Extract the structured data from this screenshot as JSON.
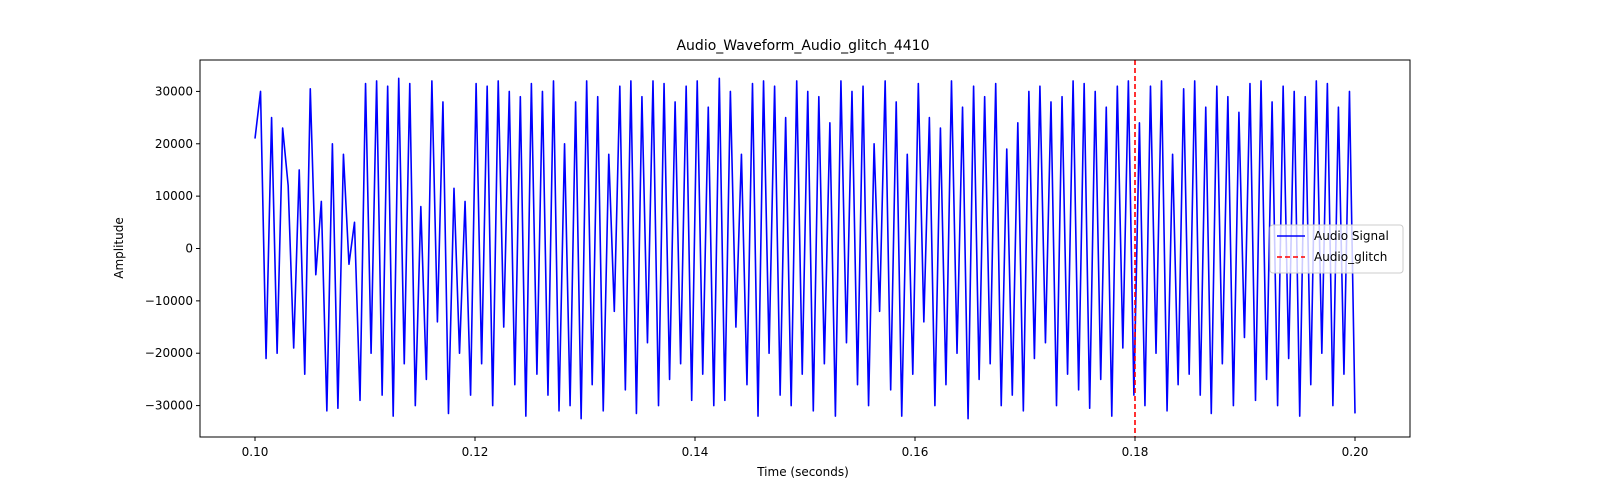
{
  "chart_data": {
    "type": "line",
    "title": "Audio_Waveform_Audio_glitch_4410",
    "xlabel": "Time (seconds)",
    "ylabel": "Amplitude",
    "xlim": [
      0.095,
      0.205
    ],
    "ylim": [
      -36000,
      36000
    ],
    "xticks": [
      0.1,
      0.12,
      0.14,
      0.16,
      0.18,
      0.2
    ],
    "xtick_labels": [
      "0.10",
      "0.12",
      "0.14",
      "0.16",
      "0.18",
      "0.20"
    ],
    "yticks": [
      -30000,
      -20000,
      -10000,
      0,
      10000,
      20000,
      30000
    ],
    "ytick_labels": [
      "−30000",
      "−20000",
      "−10000",
      "0",
      "10000",
      "20000",
      "30000"
    ],
    "grid": false,
    "legend": {
      "placement": "center-right",
      "entries": [
        {
          "label": "Audio Signal",
          "color": "#0000ff",
          "style": "solid"
        },
        {
          "label": "Audio_glitch",
          "color": "#ff0000",
          "style": "dashed"
        }
      ]
    },
    "series": [
      {
        "name": "Audio Signal",
        "color": "#0000ff",
        "x_start": 0.1,
        "x_end": 0.2,
        "y": [
          21000,
          30000,
          -21000,
          25000,
          -20000,
          23000,
          12000,
          -19000,
          15000,
          -24000,
          30500,
          -5000,
          9000,
          -31000,
          20000,
          -30500,
          18000,
          -3000,
          5000,
          -29000,
          31500,
          -20000,
          32000,
          -28000,
          31000,
          -32000,
          32500,
          -22000,
          31500,
          -30000,
          8000,
          -25000,
          32000,
          -14000,
          28000,
          -31500,
          11500,
          -20000,
          9000,
          -28000,
          31500,
          -22000,
          31000,
          -30000,
          32000,
          -15000,
          30000,
          -26000,
          29000,
          -32000,
          31500,
          -24000,
          30000,
          -28000,
          32000,
          -31000,
          20000,
          -30000,
          28000,
          -32500,
          32000,
          -26000,
          29000,
          -31000,
          18000,
          -12000,
          31000,
          -27000,
          32000,
          -31500,
          29000,
          -18000,
          32000,
          -30000,
          31500,
          -25000,
          28000,
          -22000,
          31000,
          -29000,
          32000,
          -24000,
          27000,
          -30000,
          32500,
          -29000,
          30000,
          -15000,
          18000,
          -26000,
          31500,
          -32000,
          32000,
          -20000,
          31000,
          -28000,
          25000,
          -30000,
          32000,
          -24000,
          30000,
          -31000,
          29000,
          -22000,
          24000,
          -32000,
          32000,
          -18000,
          30000,
          -26000,
          31000,
          -30000,
          20000,
          -12000,
          32000,
          -27000,
          28000,
          -32000,
          18000,
          -24000,
          31500,
          -14000,
          25000,
          -30000,
          23000,
          -26000,
          32000,
          -20000,
          27000,
          -32500,
          31000,
          -25000,
          29000,
          -22000,
          31500,
          -30000,
          19000,
          -28000,
          24000,
          -31000,
          30000,
          -21000,
          31000,
          -18000,
          28000,
          -30000,
          29000,
          -24000,
          32000,
          -27000,
          31500,
          -30500,
          30000,
          -25000,
          27000,
          -32000,
          31000,
          -19000,
          32000,
          -28000,
          24000,
          -30000,
          31000,
          -20000,
          32000,
          -31000,
          18000,
          -26000,
          30500,
          -24000,
          32000,
          -28000,
          27000,
          -31500,
          31000,
          -22000,
          29000,
          -30000,
          26000,
          -17000,
          31500,
          -29000,
          32000,
          -25000,
          28000,
          -30000,
          31000,
          -21000,
          30000,
          -32000,
          29000,
          -26000,
          32000,
          -20000,
          31500,
          -30000,
          27000,
          -24000,
          30000,
          -31500
        ]
      }
    ],
    "annotations": [
      {
        "label": "Audio_glitch",
        "type": "vline",
        "x": 0.18,
        "color": "#ff0000",
        "style": "dashed"
      }
    ]
  }
}
